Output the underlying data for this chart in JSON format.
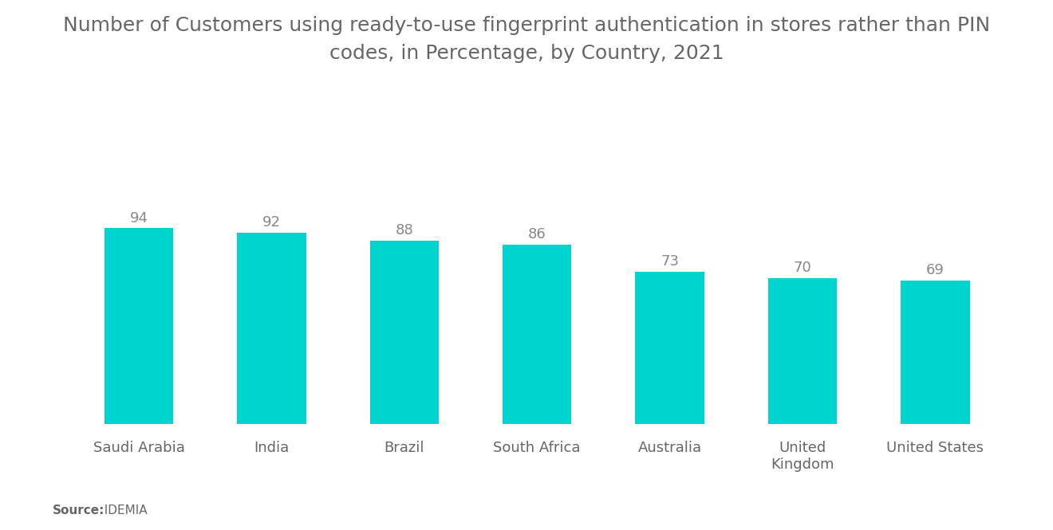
{
  "title_line1": "Number of Customers using ready-to-use fingerprint authentication in stores rather than PIN",
  "title_line2": "codes, in Percentage, by Country, 2021",
  "categories": [
    "Saudi Arabia",
    "India",
    "Brazil",
    "South Africa",
    "Australia",
    "United\nKingdom",
    "United States"
  ],
  "values": [
    94,
    92,
    88,
    86,
    73,
    70,
    69
  ],
  "bar_color": "#00D4CF",
  "value_color": "#888888",
  "title_color": "#666666",
  "label_color": "#666666",
  "source_bold": "Source:",
  "source_normal": "  IDEMIA",
  "background_color": "#ffffff",
  "ylim": [
    0,
    140
  ],
  "bar_width": 0.52,
  "title_fontsize": 18,
  "label_fontsize": 13,
  "value_fontsize": 13,
  "source_fontsize": 11
}
